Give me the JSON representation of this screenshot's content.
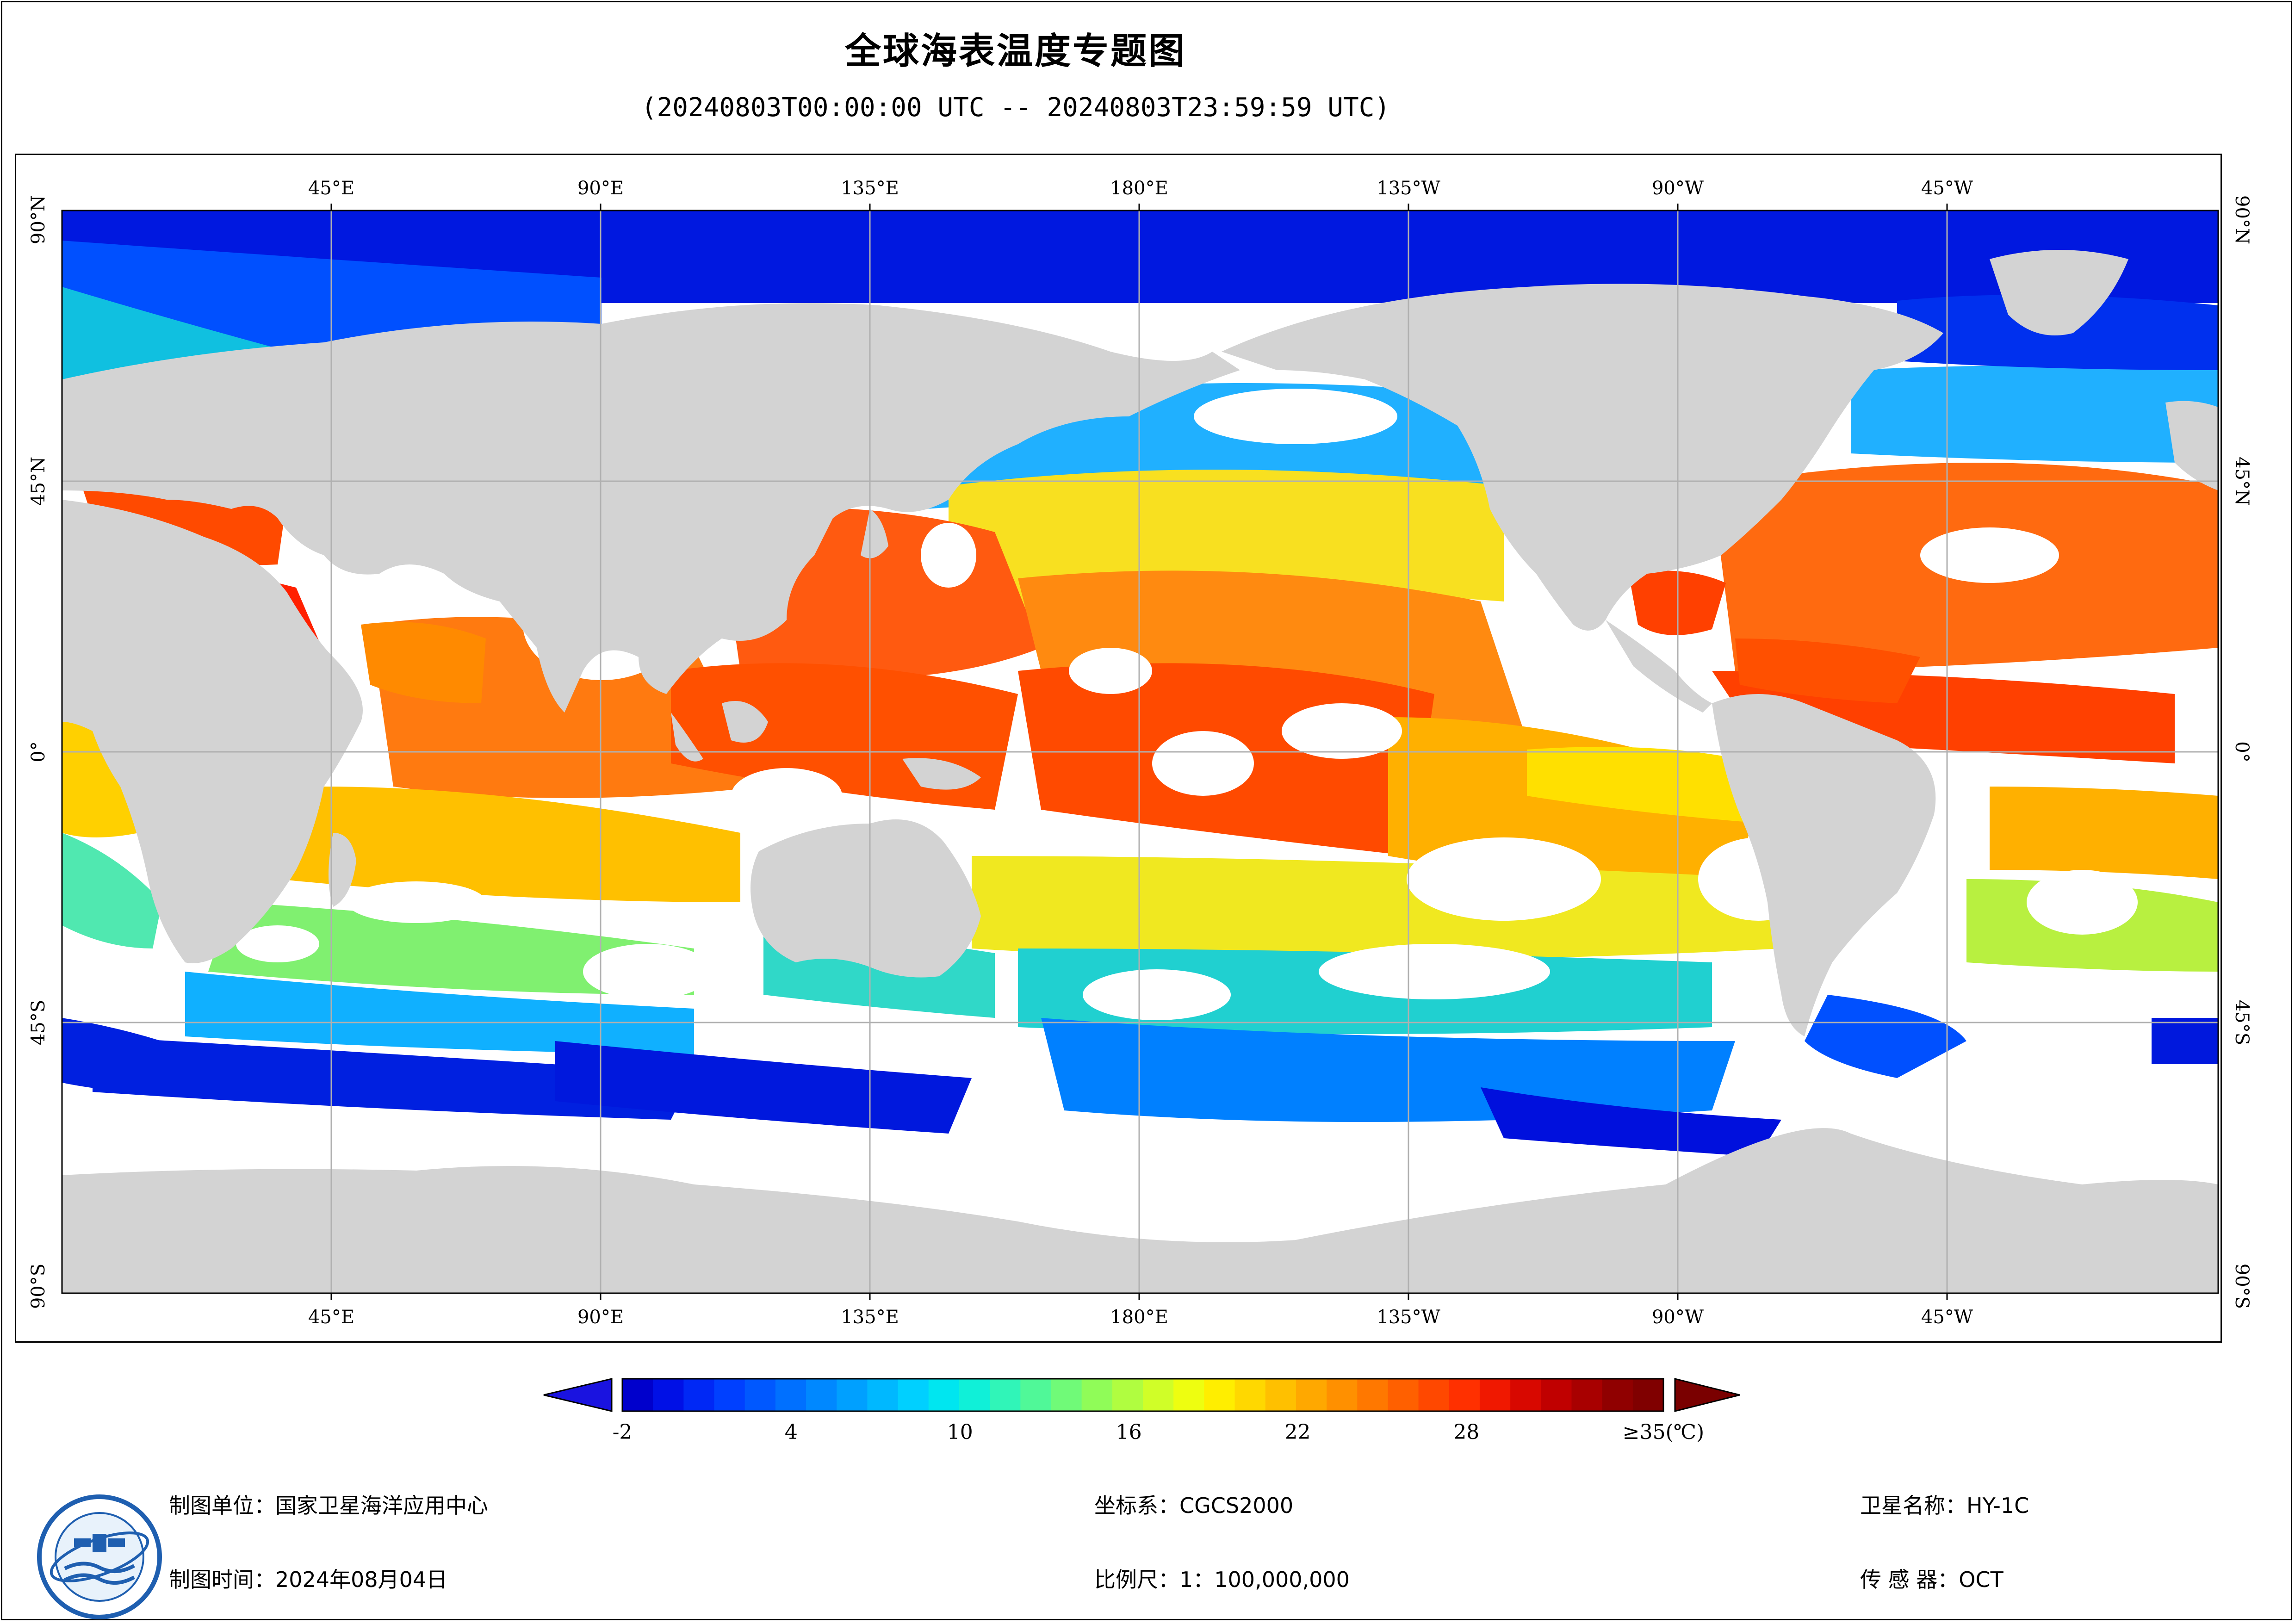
{
  "title": "全球海表温度专题图",
  "subtitle": "(20240803T00:00:00 UTC -- 20240803T23:59:59 UTC)",
  "map": {
    "top_lon_labels": [
      "45°E",
      "90°E",
      "135°E",
      "180°E",
      "135°W",
      "90°W",
      "45°W"
    ],
    "bottom_lon_labels": [
      "45°E",
      "90°E",
      "135°E",
      "180°E",
      "135°W",
      "90°W",
      "45°W"
    ],
    "left_lat_labels": [
      "90°N",
      "45°N",
      "0°",
      "45°S",
      "90°S"
    ],
    "right_lat_labels": [
      "90°N",
      "45°N",
      "0°",
      "45°S",
      "90°S"
    ],
    "colors": {
      "land": "#d3d3d3",
      "no_data": "#ffffff",
      "grid": "#b0b0b0"
    },
    "projection": "equirectangular, centered 180°E"
  },
  "colorbar": {
    "tick_labels": [
      "-2",
      "4",
      "10",
      "16",
      "22",
      "28",
      "≥35(℃)"
    ],
    "ticks_values": [
      -2,
      4,
      10,
      16,
      22,
      28,
      35
    ],
    "min": -2,
    "max": 35,
    "under_color": "#1a13e0",
    "over_color": "#7a0000",
    "colors": [
      "#0000cc",
      "#0010e6",
      "#0028f5",
      "#0040ff",
      "#0058ff",
      "#0070ff",
      "#0088ff",
      "#00a0ff",
      "#00b8ff",
      "#00d0ff",
      "#00e6f0",
      "#10f0d8",
      "#30f5b8",
      "#50f898",
      "#70fa78",
      "#90fc58",
      "#b0fd40",
      "#d0fe28",
      "#eefe10",
      "#ffee00",
      "#ffd800",
      "#ffc000",
      "#ffa800",
      "#ff9000",
      "#ff7800",
      "#ff6000",
      "#ff4800",
      "#ff3000",
      "#f01800",
      "#d80800",
      "#c00000",
      "#a80000",
      "#900000",
      "#800000"
    ]
  },
  "footer": {
    "org_label": "制图单位：国家卫星海洋应用中心",
    "time_label": "制图时间：2024年08月04日",
    "crs_label": "坐标系：CGCS2000",
    "scale_label": "比例尺：1：100,000,000",
    "satellite_label": "卫星名称：HY-1C",
    "sensor_label": "传 感 器：OCT"
  }
}
